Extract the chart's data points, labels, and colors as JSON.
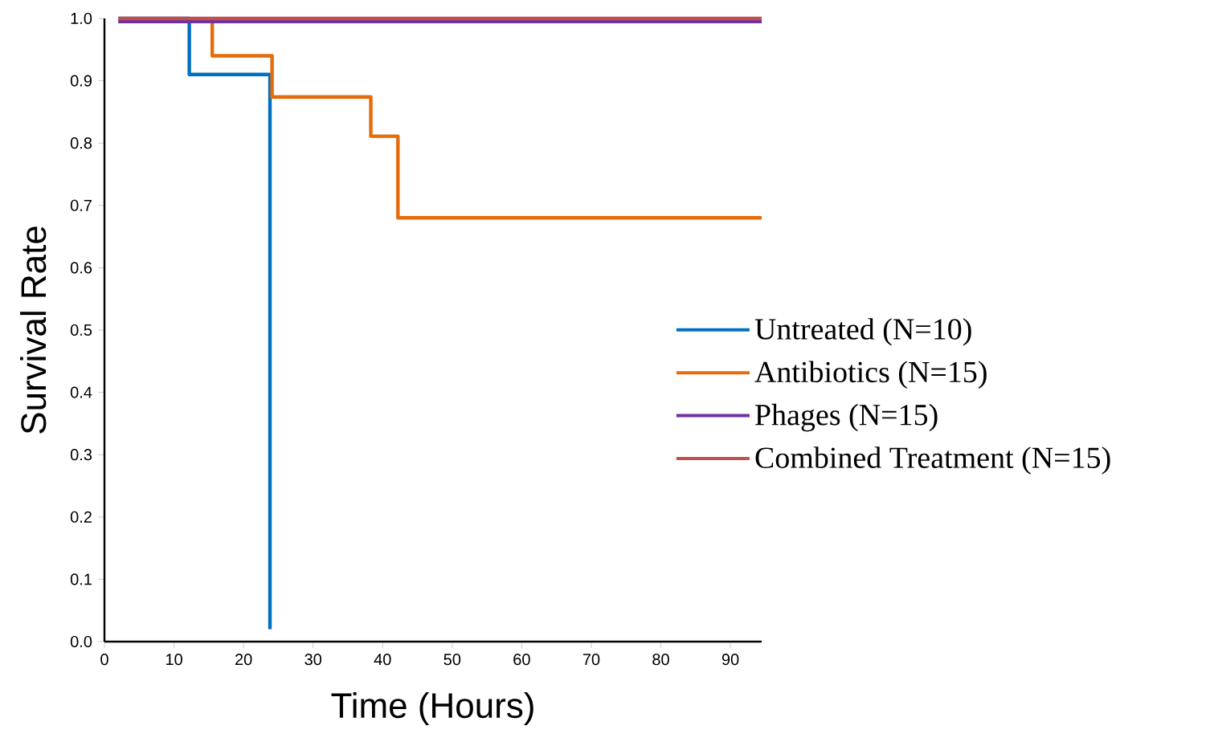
{
  "chart_data": {
    "type": "step",
    "xlabel": "Time (Hours)",
    "ylabel": "Survival Rate",
    "xlim": [
      0,
      94.5
    ],
    "ylim": [
      0,
      1.0
    ],
    "xticks": [
      0,
      10,
      20,
      30,
      40,
      50,
      60,
      70,
      80,
      90
    ],
    "yticks": [
      {
        "value": 0,
        "label": "0.0"
      },
      {
        "value": 0.1,
        "label": "0.1"
      },
      {
        "value": 0.2,
        "label": "0.2"
      },
      {
        "value": 0.3,
        "label": "0.3"
      },
      {
        "value": 0.4,
        "label": "0.4"
      },
      {
        "value": 0.5,
        "label": "0.5"
      },
      {
        "value": 0.6,
        "label": "0.6"
      },
      {
        "value": 0.7,
        "label": "0.7"
      },
      {
        "value": 0.8,
        "label": "0.8"
      },
      {
        "value": 0.9,
        "label": "0.9"
      },
      {
        "value": 1.0,
        "label": "1.0"
      }
    ],
    "legend": "right",
    "grid": false,
    "marker": "none",
    "line_style": "solid",
    "series": [
      {
        "name": "Untreated (N=10)",
        "color": "#0070c0",
        "x": [
          2,
          12.2,
          23.8
        ],
        "values": [
          1.0,
          0.91,
          0.02
        ]
      },
      {
        "name": "Antibiotics (N=15)",
        "color": "#e46c0a",
        "x": [
          2,
          15.5,
          24.1,
          38.3,
          42.2,
          94.5
        ],
        "values": [
          0.995,
          0.94,
          0.874,
          0.811,
          0.68,
          0.68
        ]
      },
      {
        "name": "Phages (N=15)",
        "color": "#7030a0",
        "x": [
          2,
          94.5
        ],
        "values": [
          0.995,
          0.995
        ]
      },
      {
        "name": "Combined Treatment (N=15)",
        "color": "#c0504d",
        "x": [
          2,
          94.5
        ],
        "values": [
          1.0,
          1.0
        ]
      }
    ]
  }
}
